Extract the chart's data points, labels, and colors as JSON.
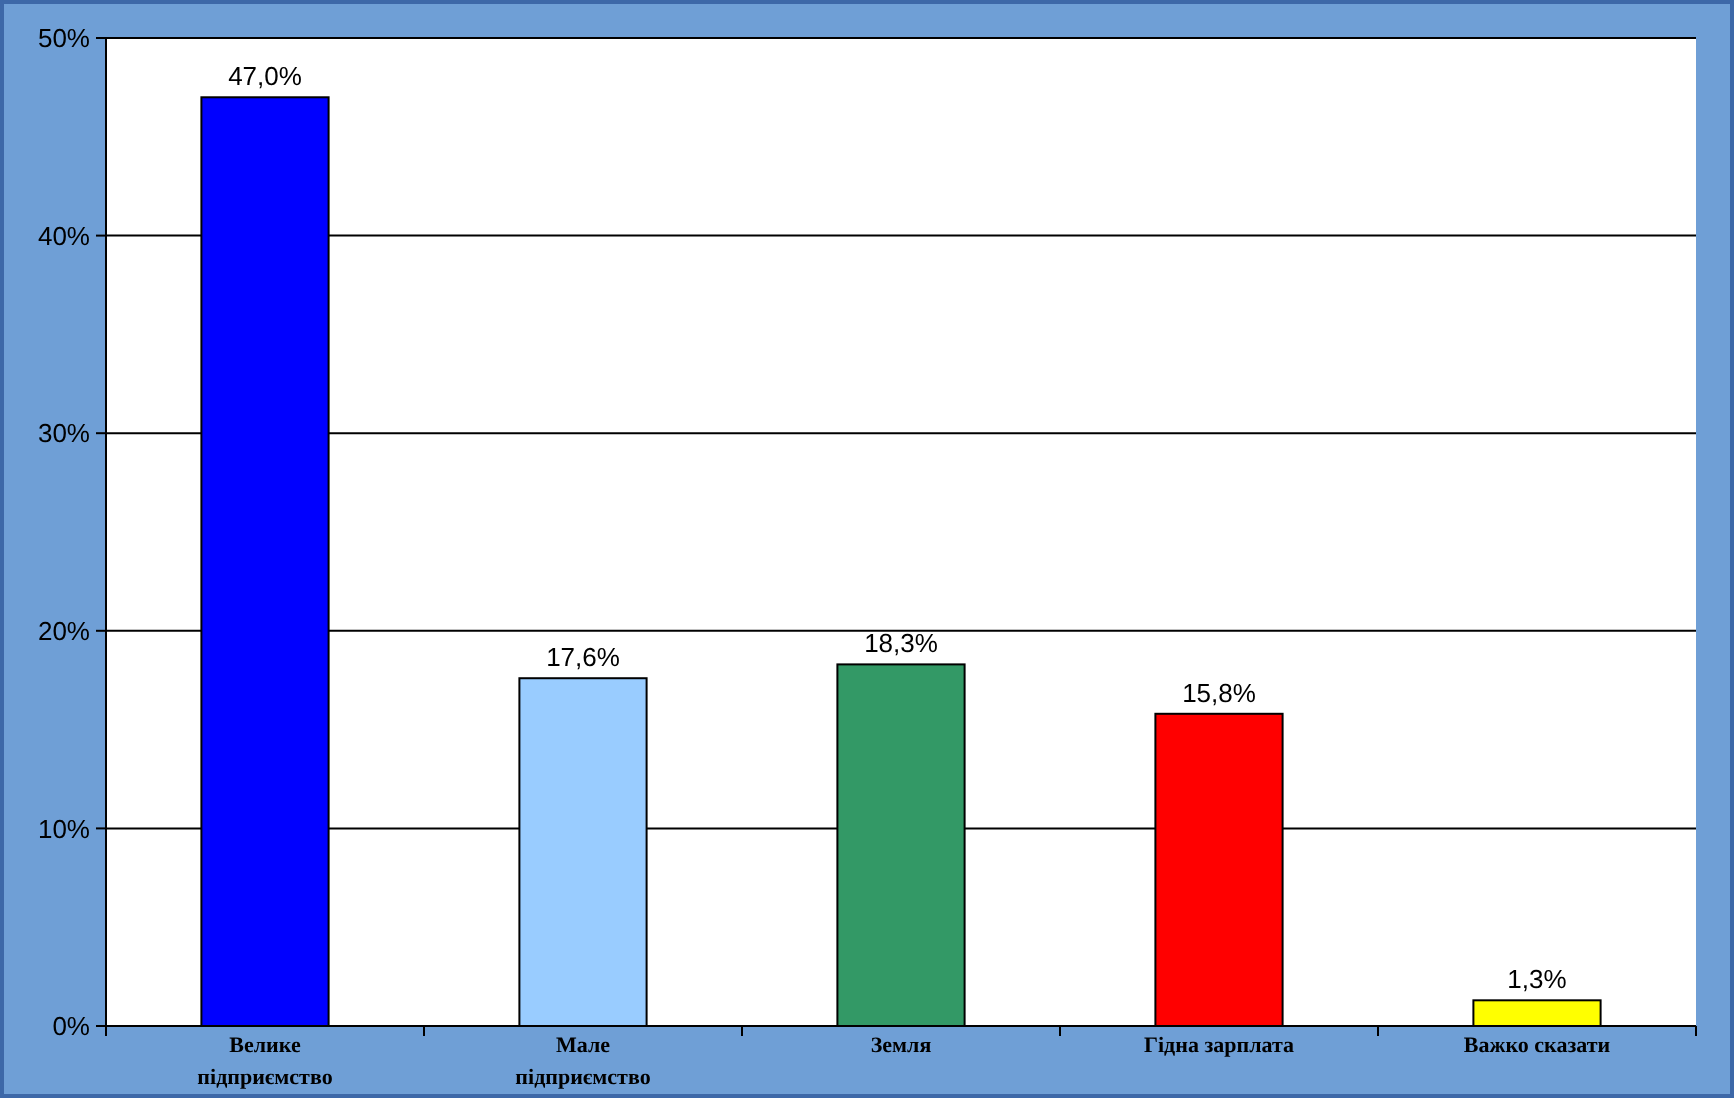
{
  "chart_data": {
    "type": "bar",
    "categories": [
      "Велике підприємство",
      "Мале підприємство",
      "Земля",
      "Гідна зарплата",
      "Важко сказати"
    ],
    "values": [
      47.0,
      17.6,
      18.3,
      15.8,
      1.3
    ],
    "colors": [
      "#0000ff",
      "#99ccff",
      "#339966",
      "#ff0000",
      "#ffff00"
    ],
    "value_labels": [
      "47,0%",
      "17,6%",
      "18,3%",
      "15,8%",
      "1,3%"
    ],
    "ylim": [
      0,
      50
    ],
    "yticks": [
      {
        "value": 0,
        "label": "0%"
      },
      {
        "value": 10,
        "label": "10%"
      },
      {
        "value": 20,
        "label": "20%"
      },
      {
        "value": 30,
        "label": "30%"
      },
      {
        "value": 40,
        "label": "40%"
      },
      {
        "value": 50,
        "label": "50%"
      }
    ],
    "grid": "y"
  }
}
